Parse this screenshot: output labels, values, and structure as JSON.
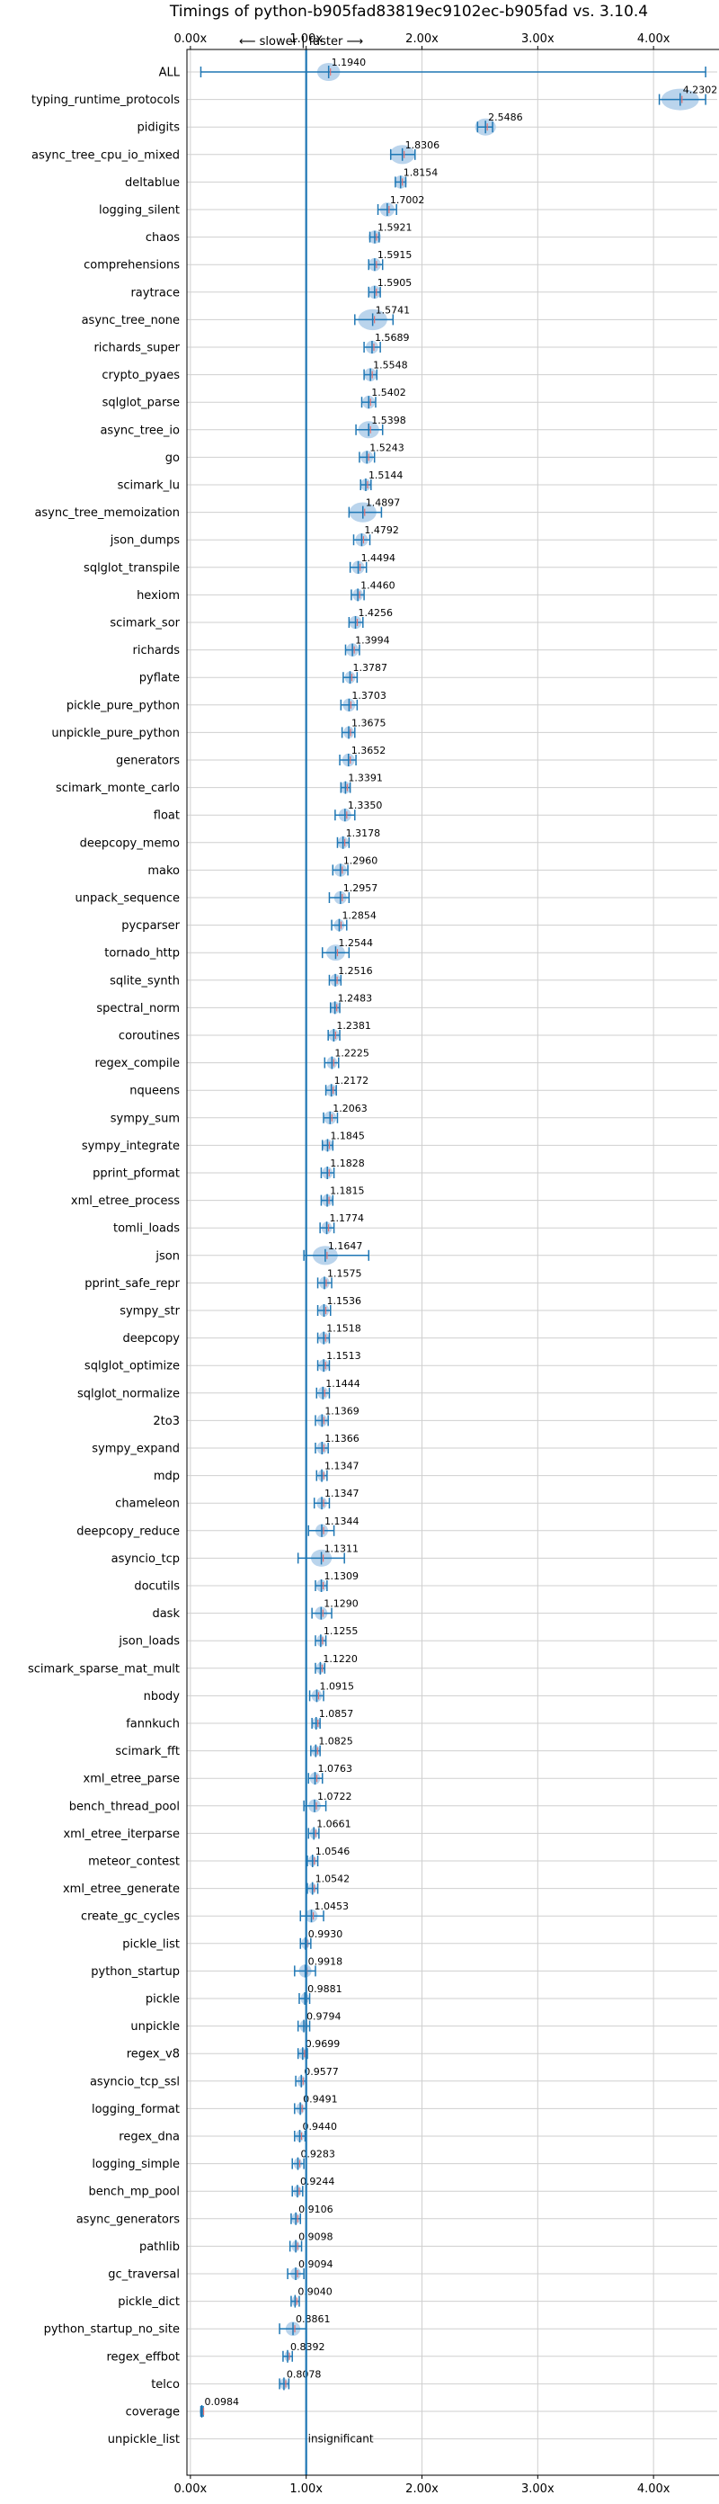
{
  "chart_data": {
    "type": "violin",
    "title": "Timings of python-b905fad83819ec9102ec-b905fad vs. 3.10.4",
    "direction_label": "⟵ slower | faster ⟶",
    "x_ticks": [
      "0.00x",
      "1.00x",
      "2.00x",
      "3.00x",
      "4.00x"
    ],
    "x_tick_values": [
      0,
      1,
      2,
      3,
      4
    ],
    "xlim": [
      -0.03,
      4.55
    ],
    "reference_x": 1.0,
    "grid": true,
    "colors": {
      "body": "#aecde9",
      "line": "#1f77b4",
      "median": "#e07070",
      "grid": "#cfcfcf"
    },
    "benchmarks": [
      {
        "name": "ALL",
        "value": 1.194,
        "label": "1.1940",
        "min": 0.09,
        "max": 4.45,
        "spread": 0.11
      },
      {
        "name": "typing_runtime_protocols",
        "value": 4.2302,
        "label": "4.2302",
        "min": 4.05,
        "max": 4.45,
        "spread": 0.18
      },
      {
        "name": "pidigits",
        "value": 2.5486,
        "label": "2.5486",
        "min": 2.48,
        "max": 2.61,
        "spread": 0.1
      },
      {
        "name": "async_tree_cpu_io_mixed",
        "value": 1.8306,
        "label": "1.8306",
        "min": 1.73,
        "max": 1.94,
        "spread": 0.12
      },
      {
        "name": "deltablue",
        "value": 1.8154,
        "label": "1.8154",
        "min": 1.77,
        "max": 1.86,
        "spread": 0.06
      },
      {
        "name": "logging_silent",
        "value": 1.7002,
        "label": "1.7002",
        "min": 1.62,
        "max": 1.78,
        "spread": 0.07
      },
      {
        "name": "chaos",
        "value": 1.5921,
        "label": "1.5921",
        "min": 1.55,
        "max": 1.63,
        "spread": 0.06
      },
      {
        "name": "comprehensions",
        "value": 1.5915,
        "label": "1.5915",
        "min": 1.54,
        "max": 1.66,
        "spread": 0.06
      },
      {
        "name": "raytrace",
        "value": 1.5905,
        "label": "1.5905",
        "min": 1.54,
        "max": 1.64,
        "spread": 0.06
      },
      {
        "name": "async_tree_none",
        "value": 1.5741,
        "label": "1.5741",
        "min": 1.42,
        "max": 1.75,
        "spread": 0.14
      },
      {
        "name": "richards_super",
        "value": 1.5689,
        "label": "1.5689",
        "min": 1.5,
        "max": 1.64,
        "spread": 0.06
      },
      {
        "name": "crypto_pyaes",
        "value": 1.5548,
        "label": "1.5548",
        "min": 1.5,
        "max": 1.61,
        "spread": 0.06
      },
      {
        "name": "sqlglot_parse",
        "value": 1.5402,
        "label": "1.5402",
        "min": 1.48,
        "max": 1.6,
        "spread": 0.06
      },
      {
        "name": "async_tree_io",
        "value": 1.5398,
        "label": "1.5398",
        "min": 1.43,
        "max": 1.66,
        "spread": 0.1
      },
      {
        "name": "go",
        "value": 1.5243,
        "label": "1.5243",
        "min": 1.46,
        "max": 1.59,
        "spread": 0.06
      },
      {
        "name": "scimark_lu",
        "value": 1.5144,
        "label": "1.5144",
        "min": 1.47,
        "max": 1.56,
        "spread": 0.05
      },
      {
        "name": "async_tree_memoization",
        "value": 1.4897,
        "label": "1.4897",
        "min": 1.37,
        "max": 1.65,
        "spread": 0.13
      },
      {
        "name": "json_dumps",
        "value": 1.4792,
        "label": "1.4792",
        "min": 1.41,
        "max": 1.55,
        "spread": 0.06
      },
      {
        "name": "sqlglot_transpile",
        "value": 1.4494,
        "label": "1.4494",
        "min": 1.38,
        "max": 1.52,
        "spread": 0.06
      },
      {
        "name": "hexiom",
        "value": 1.446,
        "label": "1.4460",
        "min": 1.39,
        "max": 1.5,
        "spread": 0.05
      },
      {
        "name": "scimark_sor",
        "value": 1.4256,
        "label": "1.4256",
        "min": 1.37,
        "max": 1.49,
        "spread": 0.06
      },
      {
        "name": "richards",
        "value": 1.3994,
        "label": "1.3994",
        "min": 1.34,
        "max": 1.46,
        "spread": 0.06
      },
      {
        "name": "pyflate",
        "value": 1.3787,
        "label": "1.3787",
        "min": 1.32,
        "max": 1.44,
        "spread": 0.05
      },
      {
        "name": "pickle_pure_python",
        "value": 1.3703,
        "label": "1.3703",
        "min": 1.3,
        "max": 1.44,
        "spread": 0.06
      },
      {
        "name": "unpickle_pure_python",
        "value": 1.3675,
        "label": "1.3675",
        "min": 1.31,
        "max": 1.42,
        "spread": 0.05
      },
      {
        "name": "generators",
        "value": 1.3652,
        "label": "1.3652",
        "min": 1.29,
        "max": 1.43,
        "spread": 0.06
      },
      {
        "name": "scimark_monte_carlo",
        "value": 1.3391,
        "label": "1.3391",
        "min": 1.3,
        "max": 1.38,
        "spread": 0.05
      },
      {
        "name": "float",
        "value": 1.335,
        "label": "1.3350",
        "min": 1.25,
        "max": 1.42,
        "spread": 0.06
      },
      {
        "name": "deepcopy_memo",
        "value": 1.3178,
        "label": "1.3178",
        "min": 1.27,
        "max": 1.37,
        "spread": 0.05
      },
      {
        "name": "mako",
        "value": 1.296,
        "label": "1.2960",
        "min": 1.23,
        "max": 1.36,
        "spread": 0.06
      },
      {
        "name": "unpack_sequence",
        "value": 1.2957,
        "label": "1.2957",
        "min": 1.2,
        "max": 1.37,
        "spread": 0.06
      },
      {
        "name": "pycparser",
        "value": 1.2854,
        "label": "1.2854",
        "min": 1.22,
        "max": 1.35,
        "spread": 0.05
      },
      {
        "name": "tornado_http",
        "value": 1.2544,
        "label": "1.2544",
        "min": 1.14,
        "max": 1.37,
        "spread": 0.09
      },
      {
        "name": "sqlite_synth",
        "value": 1.2516,
        "label": "1.2516",
        "min": 1.2,
        "max": 1.3,
        "spread": 0.05
      },
      {
        "name": "spectral_norm",
        "value": 1.2483,
        "label": "1.2483",
        "min": 1.21,
        "max": 1.29,
        "spread": 0.05
      },
      {
        "name": "coroutines",
        "value": 1.2381,
        "label": "1.2381",
        "min": 1.19,
        "max": 1.29,
        "spread": 0.05
      },
      {
        "name": "regex_compile",
        "value": 1.2225,
        "label": "1.2225",
        "min": 1.16,
        "max": 1.28,
        "spread": 0.05
      },
      {
        "name": "nqueens",
        "value": 1.2172,
        "label": "1.2172",
        "min": 1.17,
        "max": 1.26,
        "spread": 0.05
      },
      {
        "name": "sympy_sum",
        "value": 1.2063,
        "label": "1.2063",
        "min": 1.15,
        "max": 1.27,
        "spread": 0.06
      },
      {
        "name": "sympy_integrate",
        "value": 1.1845,
        "label": "1.1845",
        "min": 1.14,
        "max": 1.23,
        "spread": 0.05
      },
      {
        "name": "pprint_pformat",
        "value": 1.1828,
        "label": "1.1828",
        "min": 1.13,
        "max": 1.24,
        "spread": 0.05
      },
      {
        "name": "xml_etree_process",
        "value": 1.1815,
        "label": "1.1815",
        "min": 1.13,
        "max": 1.23,
        "spread": 0.05
      },
      {
        "name": "tomli_loads",
        "value": 1.1774,
        "label": "1.1774",
        "min": 1.12,
        "max": 1.24,
        "spread": 0.05
      },
      {
        "name": "json",
        "value": 1.1647,
        "label": "1.1647",
        "min": 0.98,
        "max": 1.54,
        "spread": 0.12
      },
      {
        "name": "pprint_safe_repr",
        "value": 1.1575,
        "label": "1.1575",
        "min": 1.1,
        "max": 1.22,
        "spread": 0.05
      },
      {
        "name": "sympy_str",
        "value": 1.1536,
        "label": "1.1536",
        "min": 1.1,
        "max": 1.21,
        "spread": 0.05
      },
      {
        "name": "deepcopy",
        "value": 1.1518,
        "label": "1.1518",
        "min": 1.1,
        "max": 1.2,
        "spread": 0.05
      },
      {
        "name": "sqlglot_optimize",
        "value": 1.1513,
        "label": "1.1513",
        "min": 1.1,
        "max": 1.2,
        "spread": 0.05
      },
      {
        "name": "sqlglot_normalize",
        "value": 1.1444,
        "label": "1.1444",
        "min": 1.09,
        "max": 1.2,
        "spread": 0.05
      },
      {
        "name": "2to3",
        "value": 1.1369,
        "label": "1.1369",
        "min": 1.08,
        "max": 1.19,
        "spread": 0.05
      },
      {
        "name": "sympy_expand",
        "value": 1.1366,
        "label": "1.1366",
        "min": 1.08,
        "max": 1.19,
        "spread": 0.05
      },
      {
        "name": "mdp",
        "value": 1.1347,
        "label": "1.1347",
        "min": 1.09,
        "max": 1.18,
        "spread": 0.04
      },
      {
        "name": "chameleon",
        "value": 1.1347,
        "label": "1.1347",
        "min": 1.07,
        "max": 1.2,
        "spread": 0.05
      },
      {
        "name": "deepcopy_reduce",
        "value": 1.1344,
        "label": "1.1344",
        "min": 1.02,
        "max": 1.24,
        "spread": 0.06
      },
      {
        "name": "asyncio_tcp",
        "value": 1.1311,
        "label": "1.1311",
        "min": 0.93,
        "max": 1.33,
        "spread": 0.1
      },
      {
        "name": "docutils",
        "value": 1.1309,
        "label": "1.1309",
        "min": 1.08,
        "max": 1.18,
        "spread": 0.05
      },
      {
        "name": "dask",
        "value": 1.129,
        "label": "1.1290",
        "min": 1.05,
        "max": 1.22,
        "spread": 0.06
      },
      {
        "name": "json_loads",
        "value": 1.1255,
        "label": "1.1255",
        "min": 1.08,
        "max": 1.17,
        "spread": 0.04
      },
      {
        "name": "scimark_sparse_mat_mult",
        "value": 1.122,
        "label": "1.1220",
        "min": 1.08,
        "max": 1.16,
        "spread": 0.04
      },
      {
        "name": "nbody",
        "value": 1.0915,
        "label": "1.0915",
        "min": 1.03,
        "max": 1.15,
        "spread": 0.05
      },
      {
        "name": "fannkuch",
        "value": 1.0857,
        "label": "1.0857",
        "min": 1.05,
        "max": 1.12,
        "spread": 0.04
      },
      {
        "name": "scimark_fft",
        "value": 1.0825,
        "label": "1.0825",
        "min": 1.04,
        "max": 1.12,
        "spread": 0.04
      },
      {
        "name": "xml_etree_parse",
        "value": 1.0763,
        "label": "1.0763",
        "min": 1.02,
        "max": 1.14,
        "spread": 0.05
      },
      {
        "name": "bench_thread_pool",
        "value": 1.0722,
        "label": "1.0722",
        "min": 0.98,
        "max": 1.17,
        "spread": 0.06
      },
      {
        "name": "xml_etree_iterparse",
        "value": 1.0661,
        "label": "1.0661",
        "min": 1.02,
        "max": 1.11,
        "spread": 0.04
      },
      {
        "name": "meteor_contest",
        "value": 1.0546,
        "label": "1.0546",
        "min": 1.01,
        "max": 1.1,
        "spread": 0.04
      },
      {
        "name": "xml_etree_generate",
        "value": 1.0542,
        "label": "1.0542",
        "min": 1.01,
        "max": 1.1,
        "spread": 0.04
      },
      {
        "name": "create_gc_cycles",
        "value": 1.0453,
        "label": "1.0453",
        "min": 0.95,
        "max": 1.15,
        "spread": 0.06
      },
      {
        "name": "pickle_list",
        "value": 0.993,
        "label": "0.9930",
        "min": 0.95,
        "max": 1.04,
        "spread": 0.04
      },
      {
        "name": "python_startup",
        "value": 0.9918,
        "label": "0.9918",
        "min": 0.9,
        "max": 1.08,
        "spread": 0.06
      },
      {
        "name": "pickle",
        "value": 0.9881,
        "label": "0.9881",
        "min": 0.94,
        "max": 1.03,
        "spread": 0.04
      },
      {
        "name": "unpickle",
        "value": 0.9794,
        "label": "0.9794",
        "min": 0.93,
        "max": 1.03,
        "spread": 0.04
      },
      {
        "name": "regex_v8",
        "value": 0.9699,
        "label": "0.9699",
        "min": 0.93,
        "max": 1.01,
        "spread": 0.04
      },
      {
        "name": "asyncio_tcp_ssl",
        "value": 0.9577,
        "label": "0.9577",
        "min": 0.91,
        "max": 1.0,
        "spread": 0.04
      },
      {
        "name": "logging_format",
        "value": 0.9491,
        "label": "0.9491",
        "min": 0.9,
        "max": 1.0,
        "spread": 0.04
      },
      {
        "name": "regex_dna",
        "value": 0.944,
        "label": "0.9440",
        "min": 0.9,
        "max": 0.99,
        "spread": 0.04
      },
      {
        "name": "logging_simple",
        "value": 0.9283,
        "label": "0.9283",
        "min": 0.88,
        "max": 0.98,
        "spread": 0.04
      },
      {
        "name": "bench_mp_pool",
        "value": 0.9244,
        "label": "0.9244",
        "min": 0.88,
        "max": 0.97,
        "spread": 0.04
      },
      {
        "name": "async_generators",
        "value": 0.9106,
        "label": "0.9106",
        "min": 0.87,
        "max": 0.95,
        "spread": 0.04
      },
      {
        "name": "pathlib",
        "value": 0.9098,
        "label": "0.9098",
        "min": 0.86,
        "max": 0.96,
        "spread": 0.04
      },
      {
        "name": "gc_traversal",
        "value": 0.9094,
        "label": "0.9094",
        "min": 0.84,
        "max": 0.98,
        "spread": 0.05
      },
      {
        "name": "pickle_dict",
        "value": 0.904,
        "label": "0.9040",
        "min": 0.87,
        "max": 0.94,
        "spread": 0.03
      },
      {
        "name": "python_startup_no_site",
        "value": 0.8861,
        "label": "0.8861",
        "min": 0.77,
        "max": 1.0,
        "spread": 0.07
      },
      {
        "name": "regex_effbot",
        "value": 0.8392,
        "label": "0.8392",
        "min": 0.8,
        "max": 0.88,
        "spread": 0.03
      },
      {
        "name": "telco",
        "value": 0.8078,
        "label": "0.8078",
        "min": 0.77,
        "max": 0.85,
        "spread": 0.04
      },
      {
        "name": "coverage",
        "value": 0.0984,
        "label": "0.0984",
        "min": 0.09,
        "max": 0.11,
        "spread": 0.01
      },
      {
        "name": "unpickle_list",
        "value": 1.0,
        "label": "insignificant",
        "insignificant": true
      }
    ]
  }
}
